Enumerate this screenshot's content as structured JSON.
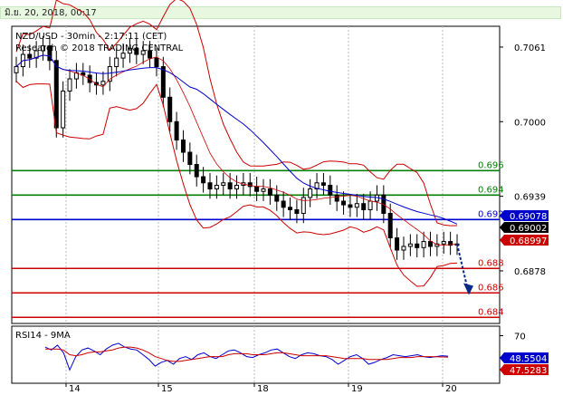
{
  "header": {
    "timestamp": "มิ.ย. 20, 2018, 00:17"
  },
  "chart_data": [
    {
      "type": "candlestick",
      "title": "NZD/USD - 30min - 2:17:11 (CET)",
      "subtitle": "Research © 2018 TRADING CENTRAL",
      "ylim": [
        0.6835,
        0.7078
      ],
      "y_ticks": [
        "0.7061",
        "0.7000",
        "0.6939",
        "0.6878"
      ],
      "x_ticks": [
        "14",
        "15",
        "18",
        "19",
        "20"
      ],
      "levels": [
        {
          "label": "0.696",
          "value": 0.696,
          "color": "#008000"
        },
        {
          "label": "0.694",
          "value": 0.694,
          "color": "#008000"
        },
        {
          "label": "0.692",
          "value": 0.692,
          "color": "#0000cc"
        },
        {
          "label": "0.688",
          "value": 0.688,
          "color": "#cc0000"
        },
        {
          "label": "0.686",
          "value": 0.686,
          "color": "#cc0000"
        },
        {
          "label": "0.684",
          "value": 0.684,
          "color": "#cc0000"
        }
      ],
      "price_tags": [
        {
          "label": "0.69078",
          "value": 0.69078,
          "color": "#0000cc"
        },
        {
          "label": "0.69002",
          "value": 0.69002,
          "color": "#000000"
        },
        {
          "label": "0.68997",
          "value": 0.68997,
          "color": "#cc0000"
        }
      ],
      "close_series": [
        0.7045,
        0.7055,
        0.7052,
        0.7058,
        0.7062,
        0.705,
        0.6995,
        0.7025,
        0.7035,
        0.704,
        0.7038,
        0.7032,
        0.703,
        0.7033,
        0.7045,
        0.7052,
        0.7056,
        0.706,
        0.7055,
        0.7058,
        0.7052,
        0.7045,
        0.702,
        0.7,
        0.6985,
        0.6975,
        0.6965,
        0.6955,
        0.695,
        0.6945,
        0.6948,
        0.695,
        0.6945,
        0.6948,
        0.695,
        0.6947,
        0.6943,
        0.6945,
        0.694,
        0.6935,
        0.693,
        0.6928,
        0.6925,
        0.6938,
        0.6945,
        0.695,
        0.6948,
        0.694,
        0.6935,
        0.6932,
        0.693,
        0.6933,
        0.6928,
        0.6935,
        0.694,
        0.6925,
        0.6905,
        0.6895,
        0.6898,
        0.69,
        0.6897,
        0.6902,
        0.6898,
        0.69,
        0.6902,
        0.6899,
        0.69
      ],
      "annotation": "projected decline toward 0.686"
    },
    {
      "type": "line",
      "title": "RSI14 - 9MA",
      "y_ticks": [
        "70"
      ],
      "value_tags": [
        {
          "label": "48.5504",
          "value": 48.5504,
          "color": "#0000cc"
        },
        {
          "label": "47.5283",
          "value": 47.5283,
          "color": "#cc0000"
        }
      ],
      "series": [
        {
          "values": [
            58,
            55,
            60,
            52,
            34,
            48,
            55,
            57,
            54,
            50,
            56,
            60,
            62,
            58,
            56,
            55,
            50,
            45,
            38,
            42,
            44,
            40,
            46,
            48,
            45,
            50,
            52,
            48,
            46,
            50,
            54,
            55,
            52,
            48,
            47,
            50,
            52,
            55,
            56,
            52,
            48,
            46,
            50,
            52,
            51,
            49,
            48,
            45,
            40,
            44,
            48,
            50,
            46,
            40,
            42,
            45,
            47,
            50,
            49,
            48,
            49,
            50,
            48,
            47,
            48,
            49,
            48.5
          ]
        },
        {
          "values": [
            56,
            56,
            56,
            55,
            50,
            49,
            50,
            52,
            53,
            53,
            54,
            55,
            57,
            58,
            58,
            57,
            55,
            52,
            48,
            46,
            44,
            43,
            43,
            44,
            45,
            46,
            47,
            48,
            48,
            48,
            50,
            51,
            51,
            51,
            50,
            50,
            50,
            51,
            52,
            52,
            51,
            50,
            49,
            49,
            49,
            49,
            49,
            48,
            47,
            46,
            46,
            46,
            46,
            45,
            45,
            45,
            45,
            46,
            47,
            47,
            47,
            48,
            48,
            48,
            47.8,
            47.6,
            47.5
          ]
        }
      ]
    }
  ]
}
